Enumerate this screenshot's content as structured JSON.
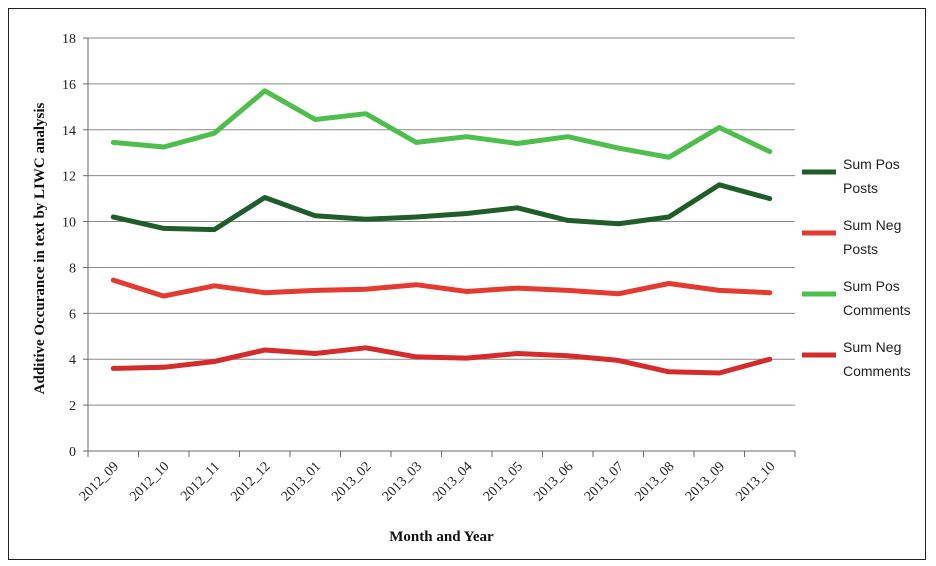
{
  "chart_data": {
    "type": "line",
    "xlabel": "Month and Year",
    "ylabel": "Additive Occurance in text by LIWC analysis",
    "ylim": [
      0,
      18
    ],
    "yticks": [
      0,
      2,
      4,
      6,
      8,
      10,
      12,
      14,
      16,
      18
    ],
    "grid": true,
    "legend_position": "right",
    "categories": [
      "2012_09",
      "2012_10",
      "2012_11",
      "2012_12",
      "2013_01",
      "2013_02",
      "2013_03",
      "2013_04",
      "2013_05",
      "2013_06",
      "2013_07",
      "2013_08",
      "2013_09",
      "2013_10"
    ],
    "series": [
      {
        "name": "Sum Pos Posts",
        "legend_lines": [
          "Sum Pos",
          "Posts"
        ],
        "color": "#1f5e2a",
        "values": [
          10.2,
          9.7,
          9.65,
          11.05,
          10.25,
          10.1,
          10.2,
          10.35,
          10.6,
          10.05,
          9.9,
          10.2,
          11.6,
          11.0
        ]
      },
      {
        "name": "Sum Neg Posts",
        "legend_lines": [
          "Sum Neg",
          "Posts"
        ],
        "color": "#e53a2f",
        "values": [
          7.45,
          6.75,
          7.2,
          6.9,
          7.0,
          7.05,
          7.25,
          6.95,
          7.1,
          7.0,
          6.85,
          7.3,
          7.0,
          6.9
        ]
      },
      {
        "name": "Sum Pos Comments",
        "legend_lines": [
          "Sum Pos",
          "Comments"
        ],
        "color": "#4cbf4c",
        "values": [
          13.45,
          13.25,
          13.85,
          15.7,
          14.45,
          14.7,
          13.45,
          13.7,
          13.4,
          13.7,
          13.2,
          12.8,
          14.1,
          13.05
        ]
      },
      {
        "name": "Sum Neg Comments",
        "legend_lines": [
          "Sum Neg",
          "Comments"
        ],
        "color": "#d62b2b",
        "values": [
          3.6,
          3.65,
          3.9,
          4.4,
          4.25,
          4.5,
          4.1,
          4.05,
          4.25,
          4.15,
          3.95,
          3.45,
          3.4,
          4.0
        ]
      }
    ]
  }
}
